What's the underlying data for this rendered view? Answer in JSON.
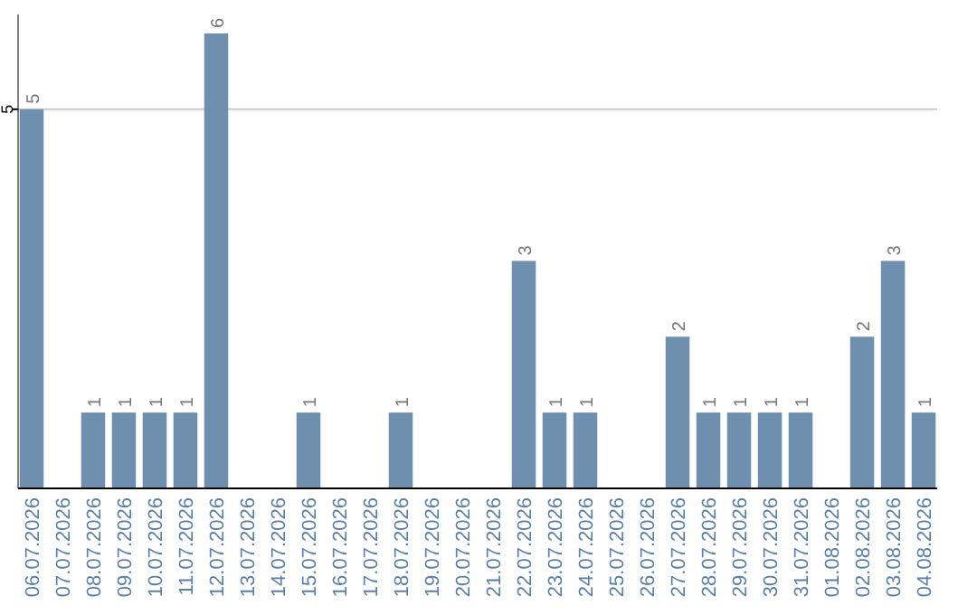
{
  "chart_data": {
    "type": "bar",
    "categories": [
      "06.07.2026",
      "07.07.2026",
      "08.07.2026",
      "09.07.2026",
      "10.07.2026",
      "11.07.2026",
      "12.07.2026",
      "13.07.2026",
      "14.07.2026",
      "15.07.2026",
      "16.07.2026",
      "17.07.2026",
      "18.07.2026",
      "19.07.2026",
      "20.07.2026",
      "21.07.2026",
      "22.07.2026",
      "23.07.2026",
      "24.07.2026",
      "25.07.2026",
      "26.07.2026",
      "27.07.2026",
      "28.07.2026",
      "29.07.2026",
      "30.07.2026",
      "31.07.2026",
      "01.08.2026",
      "02.08.2026",
      "03.08.2026",
      "04.08.2026"
    ],
    "values": [
      5,
      0,
      1,
      1,
      1,
      1,
      6,
      0,
      0,
      1,
      0,
      0,
      1,
      0,
      0,
      0,
      3,
      1,
      1,
      0,
      0,
      2,
      1,
      1,
      1,
      1,
      0,
      2,
      3,
      1
    ],
    "value_labels": [
      "5",
      null,
      "1",
      "1",
      "1",
      "1",
      "6",
      null,
      null,
      "1",
      null,
      null,
      "1",
      null,
      null,
      null,
      "3",
      "1",
      "1",
      null,
      null,
      "2",
      "1",
      "1",
      "1",
      "1",
      null,
      "2",
      "3",
      "1"
    ],
    "color": "#6e8fae",
    "ylim": [
      0,
      6.25
    ],
    "yticks": [
      5
    ],
    "grid": "y"
  }
}
